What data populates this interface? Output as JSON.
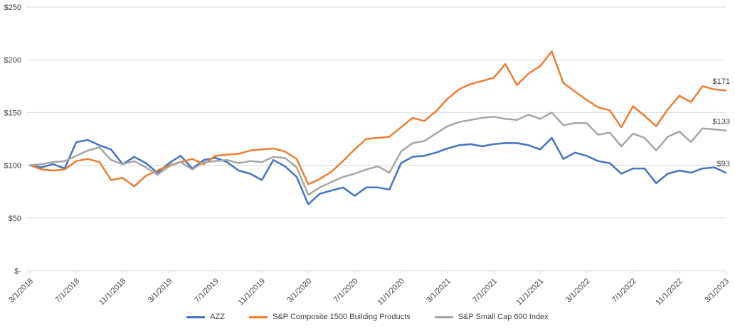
{
  "chart_data": {
    "type": "line",
    "title": "",
    "xlabel": "",
    "ylabel": "",
    "ylim": [
      0,
      250
    ],
    "grid": true,
    "legend_position": "bottom",
    "axis_text_color": "#404040",
    "gridline_color": "#D9D9D9",
    "y_ticks": [
      {
        "value": 0,
        "label": "$-"
      },
      {
        "value": 50,
        "label": "$50"
      },
      {
        "value": 100,
        "label": "$100"
      },
      {
        "value": 150,
        "label": "$150"
      },
      {
        "value": 200,
        "label": "$200"
      },
      {
        "value": 250,
        "label": "$250"
      }
    ],
    "x_tick_labels": [
      "3/1/2018",
      "7/1/2018",
      "11/1/2018",
      "3/1/2019",
      "7/1/2019",
      "11/1/2019",
      "3/1/2020",
      "7/1/2020",
      "11/1/2020",
      "3/1/2021",
      "7/1/2021",
      "11/1/2021",
      "3/1/2022",
      "7/1/2022",
      "11/1/2022",
      "3/1/2023"
    ],
    "x": [
      "3/1/2018",
      "4/1/2018",
      "5/1/2018",
      "6/1/2018",
      "7/1/2018",
      "8/1/2018",
      "9/1/2018",
      "10/1/2018",
      "11/1/2018",
      "12/1/2018",
      "1/1/2019",
      "2/1/2019",
      "3/1/2019",
      "4/1/2019",
      "5/1/2019",
      "6/1/2019",
      "7/1/2019",
      "8/1/2019",
      "9/1/2019",
      "10/1/2019",
      "11/1/2019",
      "12/1/2019",
      "1/1/2020",
      "2/1/2020",
      "3/1/2020",
      "4/1/2020",
      "5/1/2020",
      "6/1/2020",
      "7/1/2020",
      "8/1/2020",
      "9/1/2020",
      "10/1/2020",
      "11/1/2020",
      "12/1/2020",
      "1/1/2021",
      "2/1/2021",
      "3/1/2021",
      "4/1/2021",
      "5/1/2021",
      "6/1/2021",
      "7/1/2021",
      "8/1/2021",
      "9/1/2021",
      "10/1/2021",
      "11/1/2021",
      "12/1/2021",
      "1/1/2022",
      "2/1/2022",
      "3/1/2022",
      "4/1/2022",
      "5/1/2022",
      "6/1/2022",
      "7/1/2022",
      "8/1/2022",
      "9/1/2022",
      "10/1/2022",
      "11/1/2022",
      "12/1/2022",
      "1/1/2023",
      "2/1/2023",
      "3/1/2023"
    ],
    "series": [
      {
        "name": "AZZ",
        "color": "#4472C4",
        "end_label": "$93",
        "values": [
          100,
          98,
          101,
          97,
          122,
          124,
          119,
          115,
          101,
          108,
          102,
          93,
          102,
          109,
          97,
          105,
          107,
          103,
          95,
          92,
          86,
          105,
          99,
          89,
          63,
          73,
          76,
          79,
          71,
          79,
          79,
          77,
          102,
          108,
          109,
          112,
          116,
          119,
          120,
          118,
          120,
          121,
          121,
          119,
          115,
          126,
          106,
          112,
          109,
          104,
          102,
          92,
          97,
          97,
          83,
          92,
          95,
          93,
          97,
          98,
          93
        ]
      },
      {
        "name": "S&P Composite 1500 Building Products",
        "color": "#ED7D31",
        "end_label": "$171",
        "values": [
          100,
          96,
          95,
          96,
          104,
          106,
          103,
          86,
          88,
          80,
          90,
          95,
          100,
          103,
          106,
          101,
          109,
          110,
          111,
          114,
          115,
          116,
          113,
          106,
          82,
          87,
          94,
          104,
          115,
          125,
          126,
          127,
          136,
          145,
          142,
          151,
          163,
          172,
          177,
          180,
          183,
          196,
          176,
          187,
          194,
          208,
          178,
          170,
          162,
          155,
          152,
          136,
          156,
          147,
          137,
          153,
          166,
          160,
          175,
          172,
          171
        ]
      },
      {
        "name": "S&P Small Cap 600 Index",
        "color": "#A5A5A5",
        "end_label": "$133",
        "values": [
          100,
          101,
          103,
          104,
          109,
          114,
          117,
          105,
          101,
          104,
          98,
          91,
          99,
          103,
          96,
          103,
          104,
          105,
          102,
          104,
          103,
          108,
          107,
          98,
          72,
          79,
          84,
          89,
          92,
          96,
          99,
          93,
          113,
          121,
          123,
          130,
          137,
          141,
          143,
          145,
          146,
          144,
          143,
          148,
          144,
          150,
          138,
          140,
          140,
          129,
          131,
          118,
          130,
          126,
          114,
          127,
          132,
          122,
          135,
          134,
          133
        ]
      }
    ]
  }
}
